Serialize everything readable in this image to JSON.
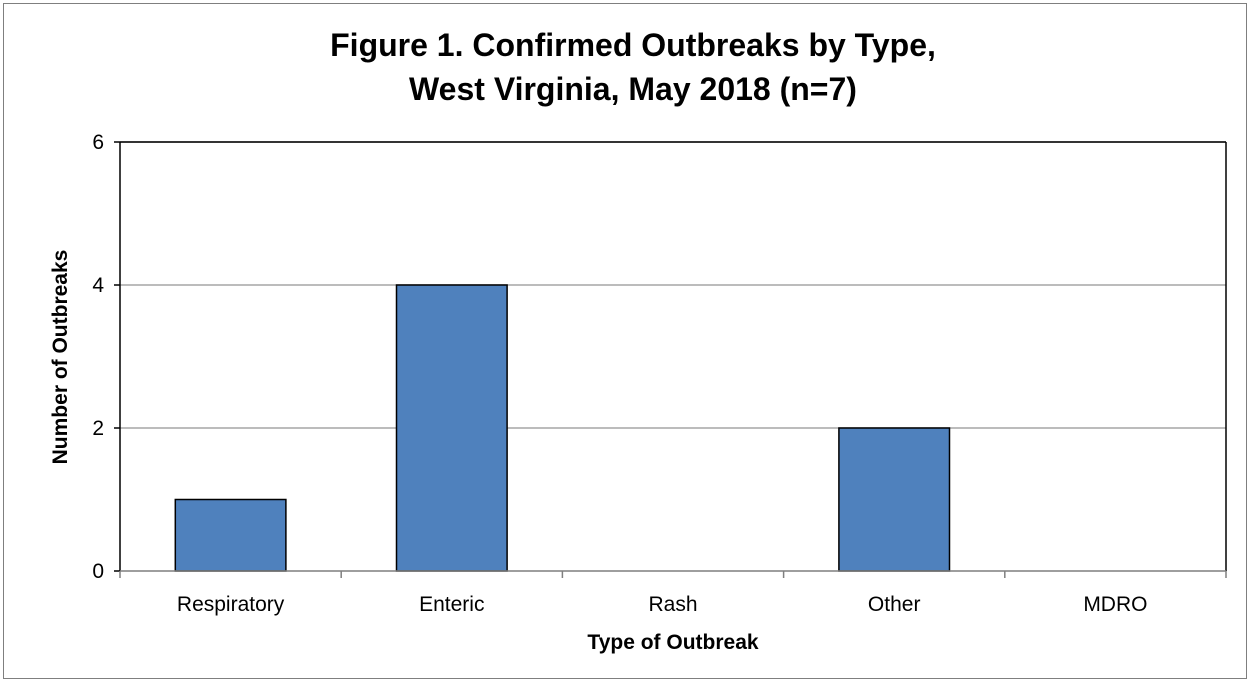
{
  "chart_data": {
    "type": "bar",
    "title": "Figure 1. Confirmed Outbreaks by Type, West Virginia, May 2018 (n=7)",
    "title_lines": [
      "Figure 1. Confirmed Outbreaks by Type,",
      "West Virginia, May 2018 (n=7)"
    ],
    "xlabel": "Type of Outbreak",
    "ylabel": "Number of Outbreaks",
    "categories": [
      "Respiratory",
      "Enteric",
      "Rash",
      "Other",
      "MDRO"
    ],
    "values": [
      1,
      4,
      0,
      2,
      0
    ],
    "ylim": [
      0,
      6
    ],
    "yticks": [
      0,
      2,
      4,
      6
    ],
    "grid": true,
    "legend": "none",
    "bar_color": "#4f81bd",
    "bar_edge_color": "#000000",
    "grid_color": "#a6a6a6"
  }
}
